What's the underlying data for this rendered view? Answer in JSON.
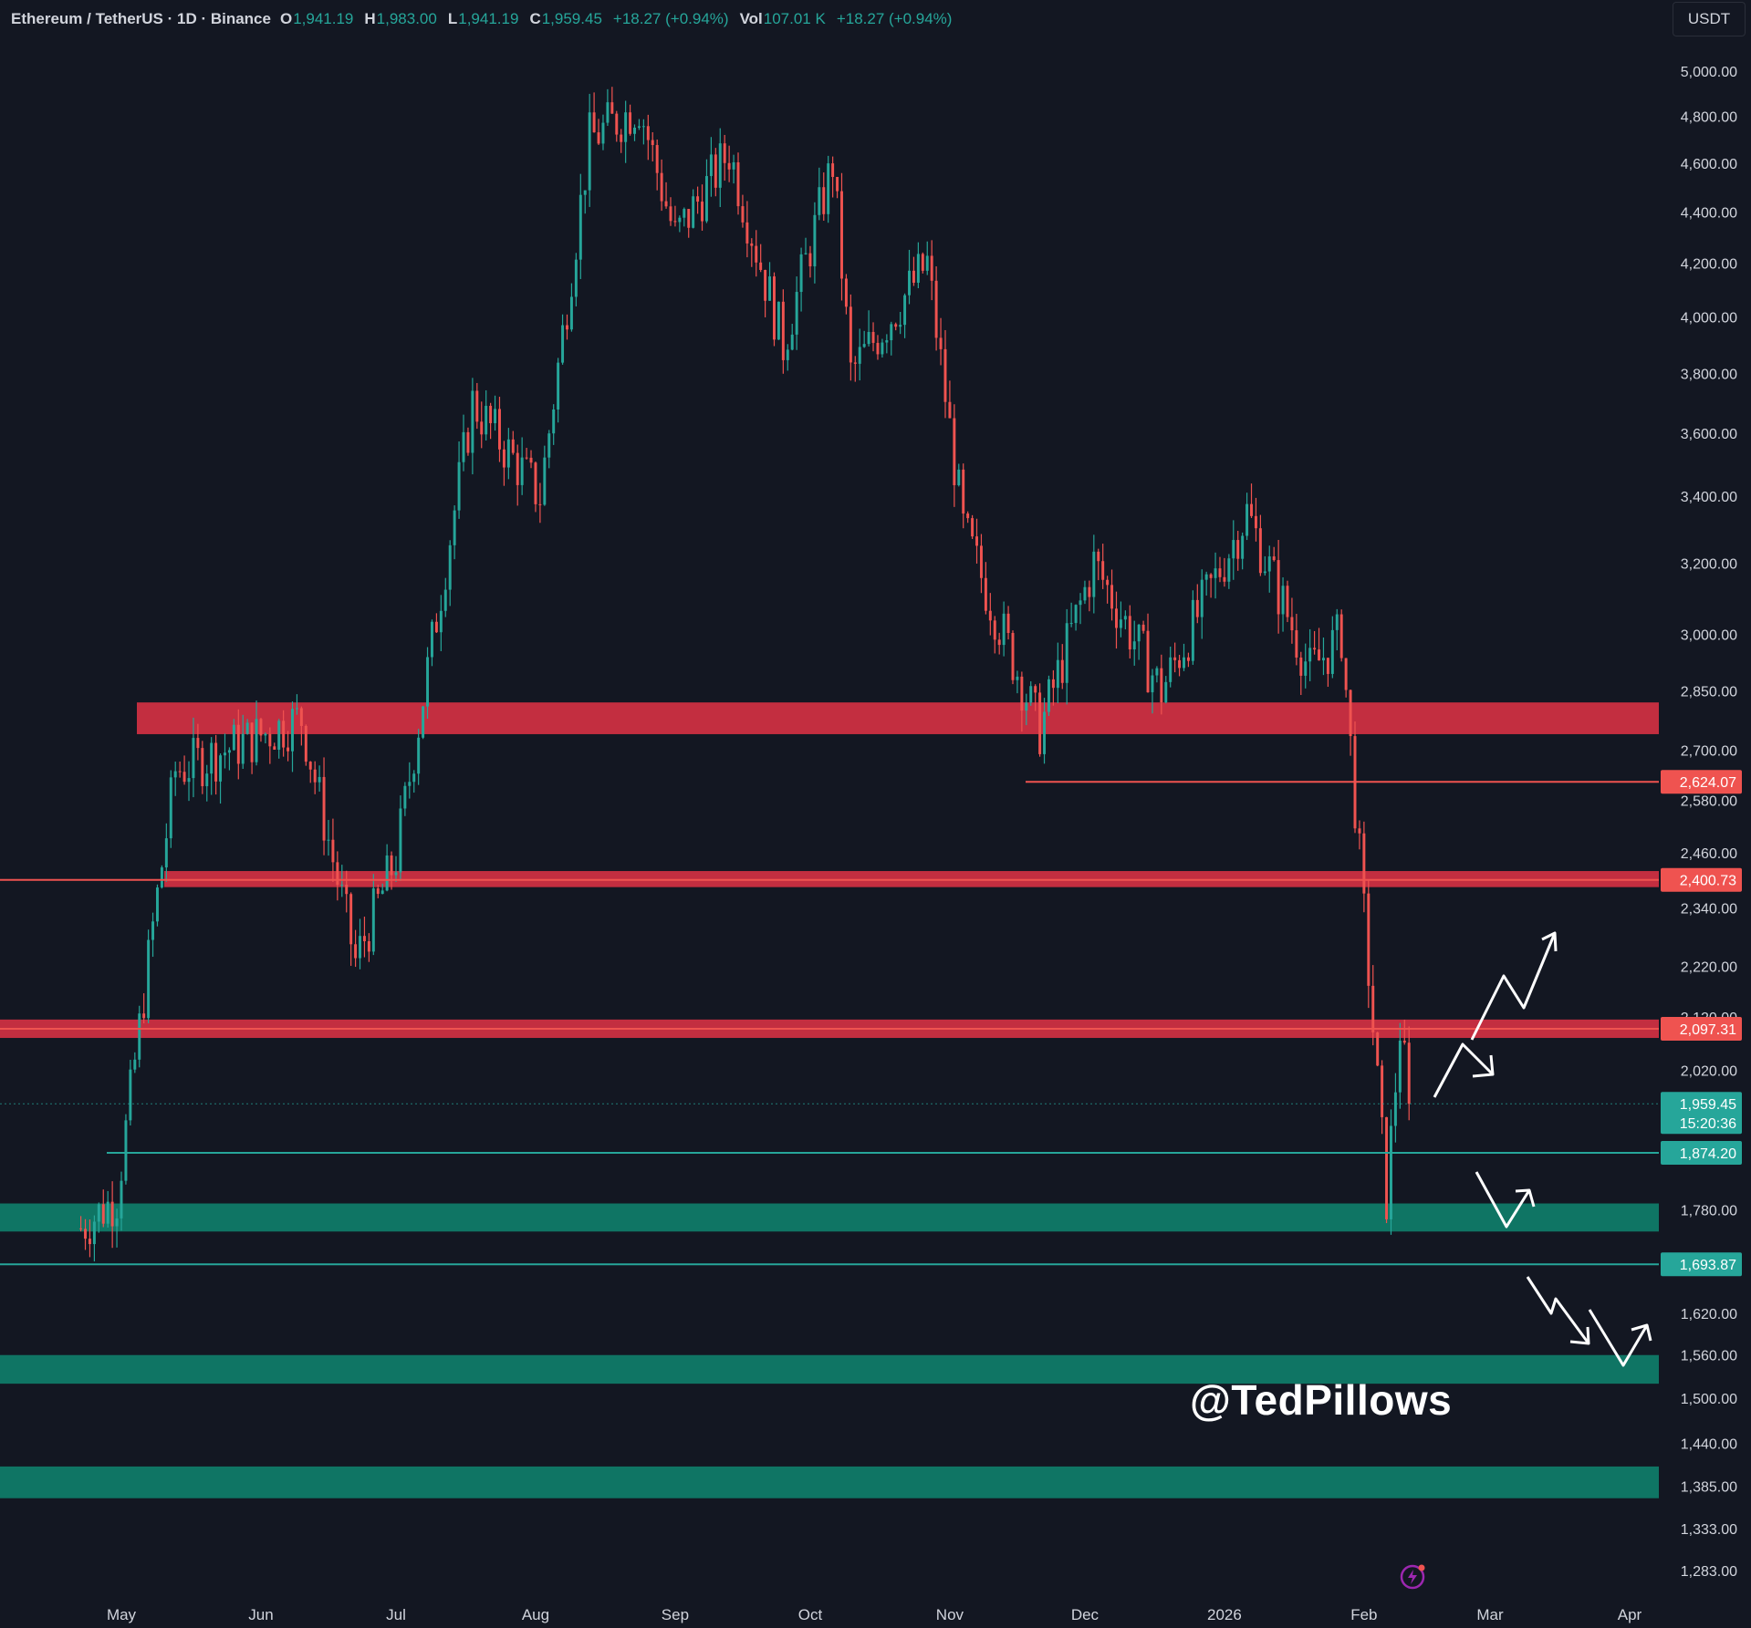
{
  "header": {
    "symbol": "Ethereum / TetherUS · 1D · Binance",
    "open_label": "O",
    "open": "1,941.19",
    "high_label": "H",
    "high": "1,983.00",
    "low_label": "L",
    "low": "1,941.19",
    "close_label": "C",
    "close": "1,959.45",
    "change": "+18.27 (+0.94%)",
    "vol_label": "Vol",
    "vol": "107.01 K",
    "vol_change": "+18.27 (+0.94%)"
  },
  "currency": "USDT",
  "watermark": "@TedPillows",
  "colors": {
    "background": "#131722",
    "up": "#26a69a",
    "down": "#ef5350",
    "resistance_zone": "#d23143",
    "support_zone": "#0f7a68",
    "axis_text": "#d1d4dc",
    "arrow": "#ffffff"
  },
  "chart_data": {
    "type": "candlestick",
    "title": "Ethereum / TetherUS · 1D · Binance",
    "scale": "log",
    "ylim": [
      1240,
      5250
    ],
    "y_ticks": [
      "5,000.00",
      "4,800.00",
      "4,600.00",
      "4,400.00",
      "4,200.00",
      "4,000.00",
      "3,800.00",
      "3,600.00",
      "3,400.00",
      "3,200.00",
      "3,000.00",
      "2,850.00",
      "2,700.00",
      "2,580.00",
      "2,460.00",
      "2,340.00",
      "2,220.00",
      "2,120.00",
      "2,020.00",
      "1,780.00",
      "1,620.00",
      "1,560.00",
      "1,500.00",
      "1,440.00",
      "1,385.00",
      "1,333.00",
      "1,283.00"
    ],
    "x_ticks": [
      "May",
      "Jun",
      "Jul",
      "Aug",
      "Sep",
      "Oct",
      "Nov",
      "Dec",
      "2026",
      "Feb",
      "Mar",
      "Apr"
    ],
    "key_points": [
      {
        "date": "2025-04-22",
        "value": 1750
      },
      {
        "date": "2025-04-30",
        "value": 1800
      },
      {
        "date": "2025-05-08",
        "value": 2300
      },
      {
        "date": "2025-05-13",
        "value": 2650
      },
      {
        "date": "2025-06-10",
        "value": 2780
      },
      {
        "date": "2025-06-22",
        "value": 2230
      },
      {
        "date": "2025-07-01",
        "value": 2450
      },
      {
        "date": "2025-07-18",
        "value": 3700
      },
      {
        "date": "2025-08-02",
        "value": 3400
      },
      {
        "date": "2025-08-13",
        "value": 4700
      },
      {
        "date": "2025-08-24",
        "value": 4850
      },
      {
        "date": "2025-09-01",
        "value": 4300
      },
      {
        "date": "2025-09-13",
        "value": 4650
      },
      {
        "date": "2025-09-25",
        "value": 3900
      },
      {
        "date": "2025-10-06",
        "value": 4600
      },
      {
        "date": "2025-10-10",
        "value": 3800
      },
      {
        "date": "2025-10-27",
        "value": 4200
      },
      {
        "date": "2025-11-04",
        "value": 3300
      },
      {
        "date": "2025-11-21",
        "value": 2750
      },
      {
        "date": "2025-12-03",
        "value": 3200
      },
      {
        "date": "2025-12-18",
        "value": 2850
      },
      {
        "date": "2026-01-06",
        "value": 3350
      },
      {
        "date": "2026-01-20",
        "value": 2900
      },
      {
        "date": "2026-01-27",
        "value": 3000
      },
      {
        "date": "2026-02-06",
        "value": 1800
      },
      {
        "date": "2026-02-09",
        "value": 2100
      },
      {
        "date": "2026-02-11",
        "value": 1959.45
      }
    ],
    "zones": [
      {
        "type": "resistance",
        "low": 2740,
        "high": 2820
      },
      {
        "type": "resistance",
        "low": 2385,
        "high": 2420
      },
      {
        "type": "resistance",
        "low": 2080,
        "high": 2115
      },
      {
        "type": "support",
        "low": 1745,
        "high": 1790
      },
      {
        "type": "support",
        "low": 1520,
        "high": 1560
      },
      {
        "type": "support",
        "low": 1370,
        "high": 1410
      }
    ],
    "levels": [
      {
        "value": 2624.07,
        "label": "2,624.07",
        "color": "#ef5350"
      },
      {
        "value": 2400.73,
        "label": "2,400.73",
        "color": "#ef5350"
      },
      {
        "value": 2097.31,
        "label": "2,097.31",
        "color": "#ef5350"
      },
      {
        "value": 1874.2,
        "label": "1,874.20",
        "color": "#26a69a"
      },
      {
        "value": 1693.87,
        "label": "1,693.87",
        "color": "#26a69a"
      }
    ],
    "last_price": {
      "value": 1959.45,
      "label": "1,959.45",
      "countdown": "15:20:36"
    }
  }
}
